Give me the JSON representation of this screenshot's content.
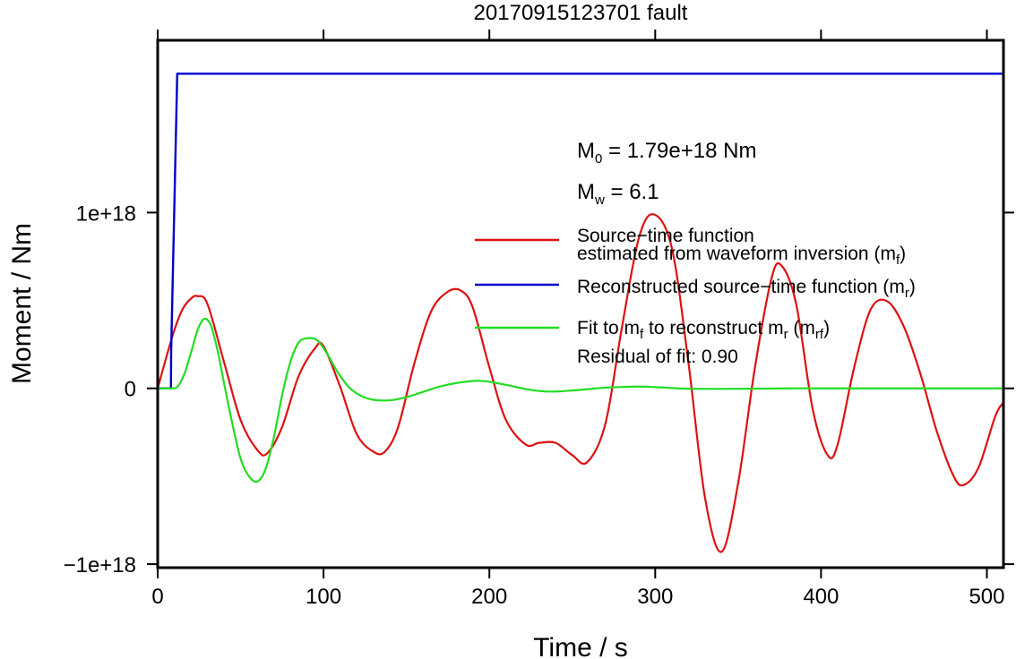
{
  "chart_data": {
    "type": "line",
    "title": "20170915123701 fault",
    "xlabel": "Time / s",
    "ylabel": "Moment / Nm",
    "xlim": [
      0,
      510
    ],
    "ylim": [
      -1.02e+18,
      1.98e+18
    ],
    "xticks": [
      0,
      100,
      200,
      300,
      400,
      500
    ],
    "xtick_labels": [
      "0",
      "100",
      "200",
      "300",
      "400",
      "500"
    ],
    "yticks": [
      -1e+18,
      0,
      1e+18
    ],
    "ytick_labels": [
      "−1e+18",
      "0",
      "1e+18"
    ],
    "grid": false,
    "legend_position": "right",
    "annotations": {
      "m0": {
        "main": "M",
        "sub": "0",
        "rest": " = 1.79e+18 Nm"
      },
      "mw": {
        "main": "M",
        "sub": "w",
        "rest": " = 6.1"
      },
      "residual": "Residual of fit: 0.90"
    },
    "legend": [
      {
        "color": "#dd1111",
        "lines": [
          [
            {
              "t": "Source−time function"
            }
          ],
          [
            {
              "t": "estimated from waveform inversion (m"
            },
            {
              "t": "f",
              "sub": true
            },
            {
              "t": ")"
            }
          ]
        ]
      },
      {
        "color": "#0000cc",
        "lines": [
          [
            {
              "t": "Reconstructed source−time function (m"
            },
            {
              "t": "r",
              "sub": true
            },
            {
              "t": ")"
            }
          ]
        ]
      },
      {
        "color": "#22dd22",
        "lines": [
          [
            {
              "t": "Fit to m"
            },
            {
              "t": "f",
              "sub": true
            },
            {
              "t": " to reconstruct m"
            },
            {
              "t": "r",
              "sub": true
            },
            {
              "t": " (m"
            },
            {
              "t": "rf",
              "sub": true
            },
            {
              "t": ")"
            }
          ]
        ]
      }
    ],
    "series": [
      {
        "color": "#dd1111",
        "x": [
          0,
          5,
          10,
          15,
          20,
          24,
          30,
          40,
          50,
          60,
          66,
          75,
          85,
          95,
          100,
          110,
          120,
          130,
          137,
          145,
          155,
          165,
          175,
          183,
          190,
          200,
          210,
          222,
          230,
          240,
          250,
          259,
          270,
          280,
          290,
          299,
          310,
          320,
          330,
          340,
          350,
          360,
          370,
          376,
          385,
          395,
          404,
          410,
          420,
          430,
          440,
          450,
          460,
          470,
          480,
          486,
          495,
          505,
          510
        ],
        "y": [
          0,
          1.7e+17,
          3.3e+17,
          4.5e+17,
          5.1e+17,
          5.25e+17,
          4.8e+17,
          1.5e+17,
          -1.8e+17,
          -3.5e+17,
          -3.7e+17,
          -2.2e+17,
          7e+16,
          2.3e+17,
          2.4e+17,
          1e+16,
          -2.6e+17,
          -3.6e+17,
          -3.6e+17,
          -2.2e+17,
          1.5e+17,
          4.4e+17,
          5.5e+17,
          5.55e+17,
          4.6e+17,
          1.2e+17,
          -1.8e+17,
          -3.2e+17,
          -3.1e+17,
          -3.1e+17,
          -3.8e+17,
          -4.2e+17,
          -2e+17,
          3.5e+17,
          8.5e+17,
          9.9e+17,
          8e+17,
          1.5e+17,
          -6.2e+17,
          -9.3e+17,
          -5.4e+17,
          1.1e+17,
          6.2e+17,
          7e+17,
          4.8e+17,
          -1.2e+17,
          -3.8e+17,
          -3.2e+17,
          1.2e+17,
          4.5e+17,
          4.95e+17,
          3.5e+17,
          8e+16,
          -2.5e+17,
          -5e+17,
          -5.5e+17,
          -4.5e+17,
          -1.6e+17,
          -8e+16
        ]
      },
      {
        "color": "#0000cc",
        "x": [
          0,
          8,
          8.1,
          11.8,
          12,
          510
        ],
        "y": [
          0,
          0,
          2e+17,
          1.79e+18,
          1.79e+18,
          1.79e+18
        ]
      },
      {
        "color": "#22dd22",
        "x": [
          0,
          8,
          12,
          16,
          20,
          24,
          28,
          32,
          36,
          40,
          45,
          50,
          55,
          60,
          65,
          70,
          75,
          80,
          85,
          90,
          96,
          102,
          108,
          115,
          122,
          130,
          140,
          150,
          160,
          170,
          180,
          190,
          195,
          200,
          210,
          220,
          230,
          240,
          250,
          260,
          270,
          280,
          290,
          300,
          310,
          320,
          340,
          360,
          380,
          400,
          450,
          510
        ],
        "y": [
          0,
          0,
          1e+16,
          8e+16,
          2e+17,
          3.3e+17,
          3.95e+17,
          3.6e+17,
          2.2e+17,
          3e+16,
          -2e+17,
          -4e+17,
          -5e+17,
          -5.3e+17,
          -4.6e+17,
          -2.8e+17,
          -4e+16,
          1.5e+17,
          2.6e+17,
          2.85e+17,
          2.75e+17,
          2e+17,
          1e+17,
          1e+16,
          -4e+16,
          -6.5e+16,
          -6.8e+16,
          -5e+16,
          -2e+16,
          1e+16,
          3e+16,
          4.2e+16,
          4.2e+16,
          3.8e+16,
          2e+16,
          0,
          -1.5e+16,
          -1.8e+16,
          -1.2e+16,
          -4000000000000000.0,
          4000000000000000.0,
          8000000000000000.0,
          1e+16,
          7000000000000000.0,
          2000000000000000.0,
          -2000000000000000.0,
          -3000000000000000.0,
          -2000000000000000.0,
          0,
          0,
          0,
          0
        ]
      }
    ]
  }
}
